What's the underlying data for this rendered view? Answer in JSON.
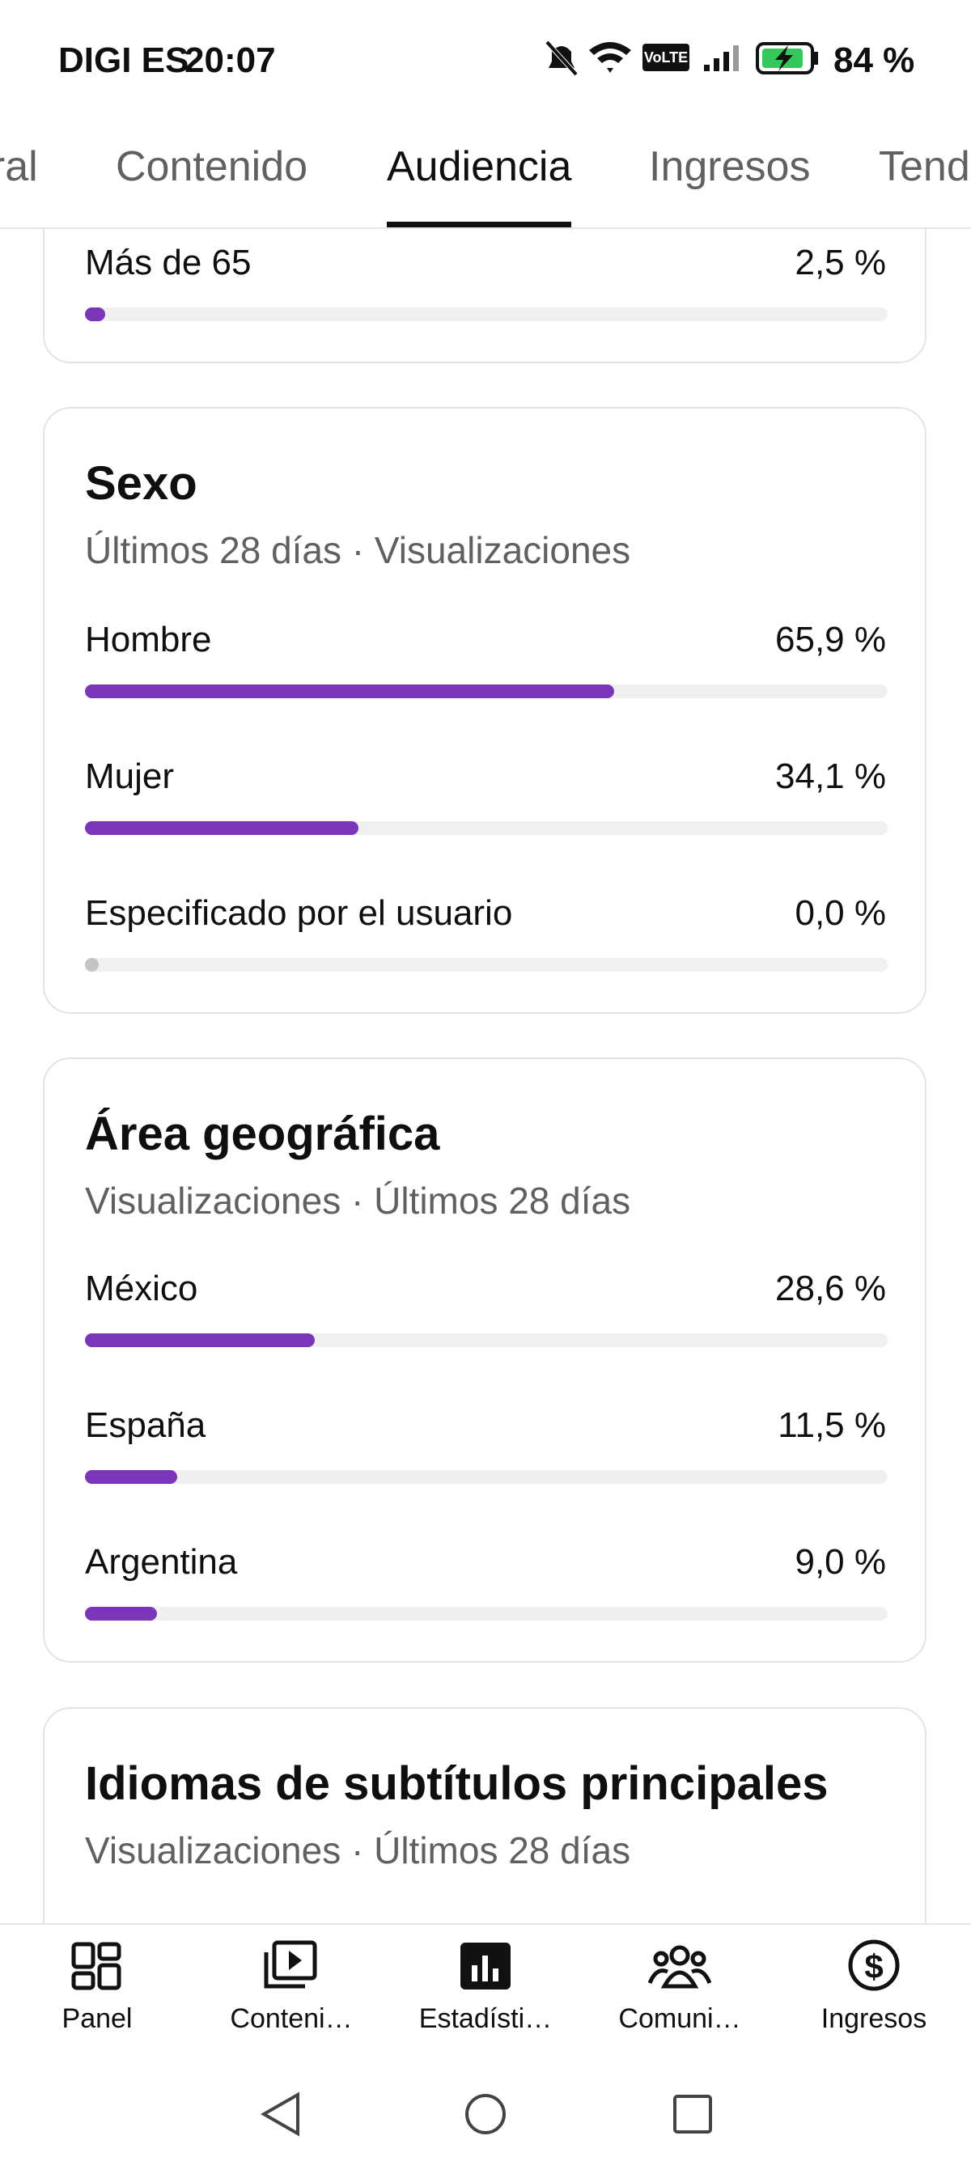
{
  "status_bar": {
    "carrier": "DIGI ES",
    "time": "20:07",
    "battery": "84 %"
  },
  "tabs": [
    "eral",
    "Contenido",
    "Audiencia",
    "Ingresos",
    "Tend"
  ],
  "active_tab": 2,
  "cards": [
    {
      "rows": [
        {
          "label": "Más de 65",
          "value": 2.5,
          "value_label": "2,5 %"
        }
      ]
    },
    {
      "title": "Sexo",
      "subtitle": "Últimos 28 días · Visualizaciones",
      "rows": [
        {
          "label": "Hombre",
          "value": 65.9,
          "value_label": "65,9 %"
        },
        {
          "label": "Mujer",
          "value": 34.1,
          "value_label": "34,1 %"
        },
        {
          "label": "Especificado por el usuario",
          "value": 0.0,
          "value_label": "0,0 %"
        }
      ]
    },
    {
      "title": "Área geográfica",
      "subtitle": "Visualizaciones · Últimos 28 días",
      "rows": [
        {
          "label": "México",
          "value": 28.6,
          "value_label": "28,6 %"
        },
        {
          "label": "España",
          "value": 11.5,
          "value_label": "11,5 %"
        },
        {
          "label": "Argentina",
          "value": 9.0,
          "value_label": "9,0 %"
        }
      ]
    },
    {
      "title": "Idiomas de subtítulos principales",
      "subtitle": "Visualizaciones · Últimos 28 días",
      "rows": []
    }
  ],
  "bottom_nav": [
    "Panel",
    "Conteni…",
    "Estadísti…",
    "Comuni…",
    "Ingresos"
  ],
  "active_nav": 2
}
